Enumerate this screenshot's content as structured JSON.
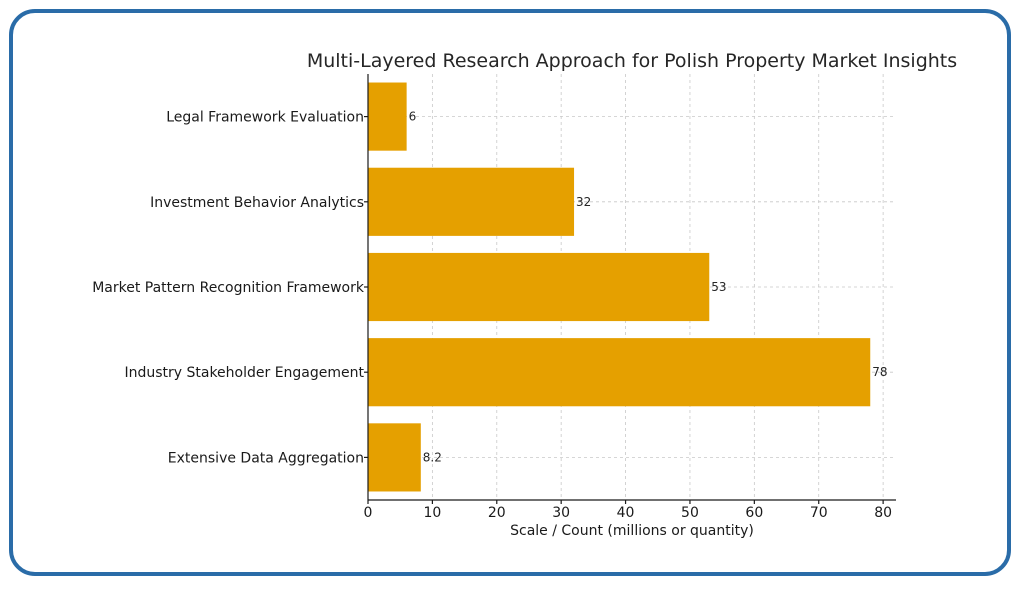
{
  "chart_data": {
    "type": "bar",
    "orientation": "horizontal",
    "title": "Multi-Layered Research Approach for Polish Property Market Insights",
    "xlabel": "Scale / Count (millions or quantity)",
    "ylabel": "",
    "xlim": [
      0,
      82
    ],
    "xticks": [
      0,
      10,
      20,
      30,
      40,
      50,
      60,
      70,
      80
    ],
    "grid": true,
    "bar_color": "#E5A000",
    "categories": [
      "Extensive Data Aggregation",
      "Industry Stakeholder Engagement",
      "Market Pattern Recognition Framework",
      "Investment Behavior Analytics",
      "Legal Framework Evaluation"
    ],
    "values": [
      8.2,
      78,
      53,
      32,
      6
    ],
    "value_labels": [
      "8.2",
      "78",
      "53",
      "32",
      "6"
    ]
  },
  "frame": {
    "border_color": "#2A6CA8"
  }
}
